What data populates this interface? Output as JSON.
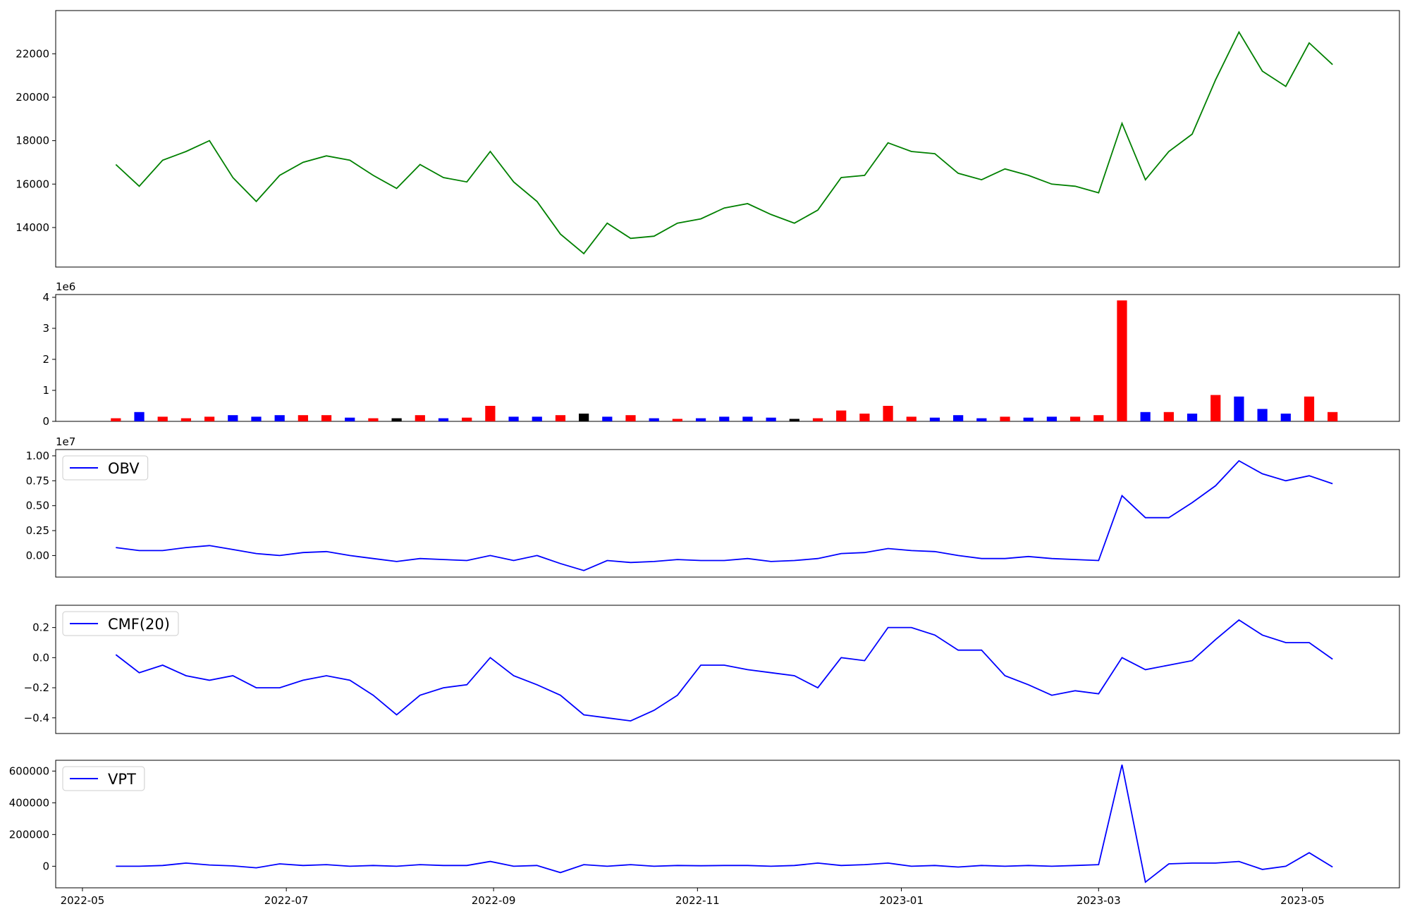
{
  "chart_data": [
    {
      "type": "line",
      "x": [
        19123,
        19130,
        19137,
        19144,
        19151,
        19158,
        19165,
        19172,
        19179,
        19186,
        19193,
        19200,
        19207,
        19214,
        19221,
        19228,
        19235,
        19242,
        19249,
        19256,
        19263,
        19270,
        19277,
        19284,
        19291,
        19298,
        19305,
        19312,
        19319,
        19326,
        19333,
        19340,
        19347,
        19354,
        19361,
        19368,
        19375,
        19382,
        19389,
        19396,
        19403,
        19410,
        19417,
        19424,
        19431,
        19438,
        19445,
        19452,
        19459,
        19466,
        19473,
        19480,
        19487
      ],
      "series": [
        {
          "color": "#008000",
          "values": [
            16900,
            15900,
            17100,
            17500,
            18000,
            16300,
            15200,
            16400,
            17000,
            17300,
            17100,
            16400,
            15800,
            16900,
            16300,
            16100,
            17500,
            16100,
            15200,
            13700,
            12800,
            14200,
            13500,
            13600,
            14200,
            14400,
            14900,
            15100,
            14600,
            14200,
            14800,
            16300,
            16400,
            17900,
            17500,
            17400,
            16500,
            16200,
            16700,
            16400,
            16000,
            15900,
            15600,
            18800,
            16200,
            17500,
            18300,
            20800,
            23000,
            21200,
            20500,
            22500,
            21500
          ]
        }
      ],
      "xlim": [
        19105,
        19507
      ],
      "ylim": [
        12180,
        23990
      ],
      "yticks": [
        14000,
        16000,
        18000,
        20000,
        22000
      ]
    },
    {
      "type": "bar",
      "x": [
        19123,
        19130,
        19137,
        19144,
        19151,
        19158,
        19165,
        19172,
        19179,
        19186,
        19193,
        19200,
        19207,
        19214,
        19221,
        19228,
        19235,
        19242,
        19249,
        19256,
        19263,
        19270,
        19277,
        19284,
        19291,
        19298,
        19305,
        19312,
        19319,
        19326,
        19333,
        19340,
        19347,
        19354,
        19361,
        19368,
        19375,
        19382,
        19389,
        19396,
        19403,
        19410,
        19417,
        19424,
        19431,
        19438,
        19445,
        19452,
        19459,
        19466,
        19473,
        19480,
        19487
      ],
      "values": [
        100000,
        300000,
        150000,
        100000,
        150000,
        200000,
        150000,
        200000,
        200000,
        200000,
        120000,
        100000,
        100000,
        200000,
        100000,
        120000,
        500000,
        150000,
        150000,
        200000,
        250000,
        150000,
        200000,
        100000,
        80000,
        100000,
        150000,
        150000,
        120000,
        80000,
        100000,
        350000,
        250000,
        500000,
        150000,
        120000,
        200000,
        100000,
        150000,
        120000,
        150000,
        150000,
        200000,
        3900000,
        300000,
        300000,
        250000,
        850000,
        800000,
        400000,
        250000,
        800000,
        300000
      ],
      "colors": [
        "#ff0000",
        "#0000ff",
        "#ff0000",
        "#ff0000",
        "#ff0000",
        "#0000ff",
        "#0000ff",
        "#0000ff",
        "#ff0000",
        "#ff0000",
        "#0000ff",
        "#ff0000",
        "#000000",
        "#ff0000",
        "#0000ff",
        "#ff0000",
        "#ff0000",
        "#0000ff",
        "#0000ff",
        "#ff0000",
        "#000000",
        "#0000ff",
        "#ff0000",
        "#0000ff",
        "#ff0000",
        "#0000ff",
        "#0000ff",
        "#0000ff",
        "#0000ff",
        "#000000",
        "#ff0000",
        "#ff0000",
        "#ff0000",
        "#ff0000",
        "#ff0000",
        "#0000ff",
        "#0000ff",
        "#0000ff",
        "#ff0000",
        "#0000ff",
        "#0000ff",
        "#ff0000",
        "#ff0000",
        "#ff0000",
        "#0000ff",
        "#ff0000",
        "#0000ff",
        "#ff0000",
        "#0000ff",
        "#0000ff",
        "#0000ff",
        "#ff0000",
        "#ff0000"
      ],
      "xlim": [
        19105,
        19507
      ],
      "ylim": [
        0,
        4090000
      ],
      "yticks": [
        0,
        {
          "value": 1000000,
          "label": "1"
        },
        {
          "value": 2000000,
          "label": "2"
        },
        {
          "value": 3000000,
          "label": "3"
        },
        {
          "value": 4000000,
          "label": "4"
        }
      ],
      "offset_label": "1e6"
    },
    {
      "type": "line",
      "x": [
        19123,
        19130,
        19137,
        19144,
        19151,
        19158,
        19165,
        19172,
        19179,
        19186,
        19193,
        19200,
        19207,
        19214,
        19221,
        19228,
        19235,
        19242,
        19249,
        19256,
        19263,
        19270,
        19277,
        19284,
        19291,
        19298,
        19305,
        19312,
        19319,
        19326,
        19333,
        19340,
        19347,
        19354,
        19361,
        19368,
        19375,
        19382,
        19389,
        19396,
        19403,
        19410,
        19417,
        19424,
        19431,
        19438,
        19445,
        19452,
        19459,
        19466,
        19473,
        19480,
        19487
      ],
      "series": [
        {
          "name": "OBV",
          "color": "#0000ff",
          "values": [
            800000,
            500000,
            500000,
            800000,
            1000000,
            600000,
            200000,
            0,
            300000,
            400000,
            0,
            -300000,
            -600000,
            -300000,
            -400000,
            -500000,
            0,
            -500000,
            0,
            -800000,
            -1500000,
            -500000,
            -700000,
            -600000,
            -400000,
            -500000,
            -500000,
            -300000,
            -600000,
            -500000,
            -300000,
            200000,
            300000,
            700000,
            500000,
            400000,
            0,
            -300000,
            -300000,
            -100000,
            -300000,
            -400000,
            -500000,
            6000000,
            3800000,
            3800000,
            5300000,
            7000000,
            9500000,
            8200000,
            7500000,
            8000000,
            7200000
          ]
        }
      ],
      "xlim": [
        19105,
        19507
      ],
      "ylim": [
        -2160000,
        10630000
      ],
      "yticks": [
        {
          "value": 0,
          "label": "0.00"
        },
        {
          "value": 2500000,
          "label": "0.25"
        },
        {
          "value": 5000000,
          "label": "0.50"
        },
        {
          "value": 7500000,
          "label": "0.75"
        },
        {
          "value": 10000000,
          "label": "1.00"
        }
      ],
      "offset_label": "1e7",
      "legend": "upper left"
    },
    {
      "type": "line",
      "x": [
        19123,
        19130,
        19137,
        19144,
        19151,
        19158,
        19165,
        19172,
        19179,
        19186,
        19193,
        19200,
        19207,
        19214,
        19221,
        19228,
        19235,
        19242,
        19249,
        19256,
        19263,
        19270,
        19277,
        19284,
        19291,
        19298,
        19305,
        19312,
        19319,
        19326,
        19333,
        19340,
        19347,
        19354,
        19361,
        19368,
        19375,
        19382,
        19389,
        19396,
        19403,
        19410,
        19417,
        19424,
        19431,
        19438,
        19445,
        19452,
        19459,
        19466,
        19473,
        19480,
        19487
      ],
      "series": [
        {
          "name": "CMF(20)",
          "color": "#0000ff",
          "values": [
            0.02,
            -0.1,
            -0.05,
            -0.12,
            -0.15,
            -0.12,
            -0.2,
            -0.2,
            -0.15,
            -0.12,
            -0.15,
            -0.25,
            -0.38,
            -0.25,
            -0.2,
            -0.18,
            0.0,
            -0.12,
            -0.18,
            -0.25,
            -0.38,
            -0.4,
            -0.42,
            -0.35,
            -0.25,
            -0.05,
            -0.05,
            -0.08,
            -0.1,
            -0.12,
            -0.2,
            0.0,
            -0.02,
            0.2,
            0.2,
            0.15,
            0.05,
            0.05,
            -0.12,
            -0.18,
            -0.25,
            -0.22,
            -0.24,
            0.0,
            -0.08,
            -0.05,
            -0.02,
            0.12,
            0.25,
            0.15,
            0.1,
            0.1,
            -0.01
          ]
        }
      ],
      "xlim": [
        19105,
        19507
      ],
      "ylim": [
        -0.504,
        0.348
      ],
      "yticks": [
        {
          "value": -0.4,
          "label": "−0.4"
        },
        {
          "value": -0.2,
          "label": "−0.2"
        },
        {
          "value": 0,
          "label": "0.0"
        },
        0.2
      ],
      "legend": "upper left"
    },
    {
      "type": "line",
      "x": [
        19123,
        19130,
        19137,
        19144,
        19151,
        19158,
        19165,
        19172,
        19179,
        19186,
        19193,
        19200,
        19207,
        19214,
        19221,
        19228,
        19235,
        19242,
        19249,
        19256,
        19263,
        19270,
        19277,
        19284,
        19291,
        19298,
        19305,
        19312,
        19319,
        19326,
        19333,
        19340,
        19347,
        19354,
        19361,
        19368,
        19375,
        19382,
        19389,
        19396,
        19403,
        19410,
        19417,
        19424,
        19431,
        19438,
        19445,
        19452,
        19459,
        19466,
        19473,
        19480,
        19487
      ],
      "series": [
        {
          "name": "VPT",
          "color": "#0000ff",
          "values": [
            0,
            0,
            5000,
            20000,
            8000,
            2000,
            -10000,
            15000,
            5000,
            10000,
            0,
            5000,
            0,
            10000,
            5000,
            5000,
            30000,
            0,
            5000,
            -40000,
            10000,
            0,
            10000,
            0,
            5000,
            3000,
            5000,
            5000,
            0,
            5000,
            20000,
            5000,
            10000,
            20000,
            0,
            5000,
            -5000,
            5000,
            0,
            5000,
            0,
            5000,
            10000,
            640000,
            -100000,
            15000,
            20000,
            20000,
            30000,
            -20000,
            0,
            85000,
            -5000
          ]
        }
      ],
      "xlim": [
        19105,
        19507
      ],
      "ylim": [
        -136000,
        668000
      ],
      "yticks": [
        0,
        200000,
        400000,
        600000
      ],
      "xticks": [
        {
          "value": 19113,
          "label": "2022-05"
        },
        {
          "value": 19174,
          "label": "2022-07"
        },
        {
          "value": 19236,
          "label": "2022-09"
        },
        {
          "value": 19297,
          "label": "2022-11"
        },
        {
          "value": 19358,
          "label": "2023-01"
        },
        {
          "value": 19417,
          "label": "2023-03"
        },
        {
          "value": 19478,
          "label": "2023-05"
        }
      ],
      "legend": "upper left"
    }
  ]
}
